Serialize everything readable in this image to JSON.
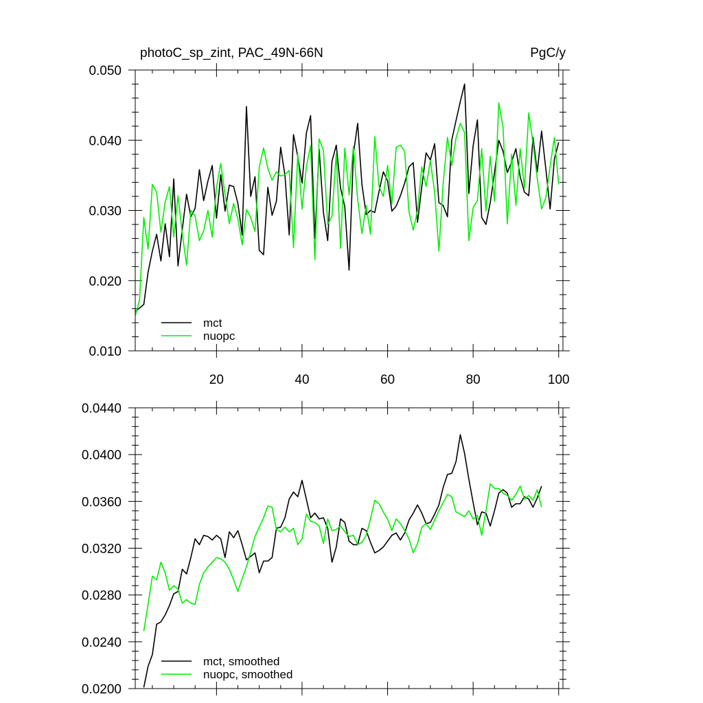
{
  "chart_data": [
    {
      "type": "line",
      "title": "photoC_sp_zint, PAC_49N-66N",
      "units": "PgC/y",
      "xlim": [
        1,
        101
      ],
      "ylim": [
        0.01,
        0.05
      ],
      "x_ticks": [
        20,
        40,
        60,
        80,
        100
      ],
      "y_ticks": [
        "0.010",
        "0.020",
        "0.030",
        "0.040",
        "0.050"
      ],
      "legend": "bottom-left",
      "series": [
        {
          "name": "mct",
          "color": "#000000",
          "x_start": 1,
          "values": [
            0.0156,
            0.0161,
            0.0166,
            0.0212,
            0.0242,
            0.0266,
            0.0228,
            0.0281,
            0.0234,
            0.0345,
            0.0221,
            0.0273,
            0.0323,
            0.0291,
            0.0303,
            0.0358,
            0.0314,
            0.0342,
            0.0364,
            0.0289,
            0.0351,
            0.0299,
            0.0336,
            0.0334,
            0.031,
            0.0265,
            0.0448,
            0.032,
            0.0348,
            0.0243,
            0.0237,
            0.0333,
            0.0293,
            0.0313,
            0.039,
            0.035,
            0.0265,
            0.0408,
            0.0377,
            0.0339,
            0.041,
            0.0435,
            0.026,
            0.0387,
            0.0297,
            0.0257,
            0.037,
            0.0393,
            0.0332,
            0.0305,
            0.0215,
            0.038,
            0.0424,
            0.0337,
            0.0294,
            0.03,
            0.0297,
            0.0327,
            0.0355,
            0.0342,
            0.0299,
            0.0306,
            0.0321,
            0.0339,
            0.0362,
            0.0368,
            0.0283,
            0.0334,
            0.0382,
            0.0372,
            0.0395,
            0.0311,
            0.0307,
            0.0291,
            0.04,
            0.0428,
            0.0455,
            0.048,
            0.0324,
            0.0392,
            0.0429,
            0.029,
            0.028,
            0.0311,
            0.0354,
            0.04,
            0.0384,
            0.0354,
            0.0369,
            0.0388,
            0.0348,
            0.0326,
            0.0321,
            0.0404,
            0.0355,
            0.0413,
            0.0359,
            0.0302,
            0.0373,
            0.0397
          ]
        },
        {
          "name": "nuopc",
          "color": "#00ee00",
          "x_start": 1,
          "values": [
            0.015,
            0.0172,
            0.029,
            0.0245,
            0.0337,
            0.0326,
            0.0269,
            0.0312,
            0.0334,
            0.0262,
            0.0321,
            0.0267,
            0.0222,
            0.03,
            0.0292,
            0.0257,
            0.0271,
            0.03,
            0.0262,
            0.0333,
            0.0367,
            0.0323,
            0.0281,
            0.031,
            0.0288,
            0.0251,
            0.0301,
            0.029,
            0.027,
            0.0362,
            0.0389,
            0.036,
            0.0343,
            0.0355,
            0.0349,
            0.0351,
            0.0357,
            0.0247,
            0.038,
            0.0302,
            0.0362,
            0.0392,
            0.023,
            0.0402,
            0.0385,
            0.028,
            0.0292,
            0.0381,
            0.0246,
            0.0389,
            0.0322,
            0.0391,
            0.0316,
            0.0267,
            0.0307,
            0.0266,
            0.0405,
            0.0334,
            0.032,
            0.0364,
            0.0309,
            0.039,
            0.0393,
            0.0384,
            0.0298,
            0.0272,
            0.03,
            0.0362,
            0.0334,
            0.0371,
            0.0326,
            0.0242,
            0.0339,
            0.0404,
            0.0364,
            0.0403,
            0.0424,
            0.0411,
            0.0257,
            0.0304,
            0.0314,
            0.0388,
            0.0299,
            0.0377,
            0.0313,
            0.0453,
            0.0418,
            0.0281,
            0.038,
            0.0307,
            0.0388,
            0.0332,
            0.0439,
            0.0396,
            0.0345,
            0.0302,
            0.0318,
            0.0363,
            0.0404,
            0.0337
          ]
        }
      ]
    },
    {
      "type": "line",
      "xlim": [
        1,
        101
      ],
      "ylim": [
        0.02,
        0.044
      ],
      "y_ticks": [
        "0.0200",
        "0.0240",
        "0.0280",
        "0.0320",
        "0.0360",
        "0.0400",
        "0.0440"
      ],
      "legend": "bottom-left",
      "series": [
        {
          "name": "mct, smoothed",
          "color": "#000000",
          "x_start": 3,
          "values": [
            0.0201,
            0.0219,
            0.0229,
            0.0255,
            0.0257,
            0.0263,
            0.0271,
            0.0281,
            0.0283,
            0.0302,
            0.0298,
            0.0312,
            0.0328,
            0.0323,
            0.0331,
            0.033,
            0.0327,
            0.0331,
            0.0328,
            0.0312,
            0.0334,
            0.0329,
            0.0335,
            0.0323,
            0.031,
            0.0313,
            0.0316,
            0.0299,
            0.0309,
            0.0309,
            0.0312,
            0.0337,
            0.0338,
            0.0346,
            0.0362,
            0.0368,
            0.0364,
            0.0378,
            0.0362,
            0.0346,
            0.035,
            0.0345,
            0.0346,
            0.0337,
            0.0308,
            0.0321,
            0.0345,
            0.0342,
            0.0326,
            0.0323,
            0.0323,
            0.0337,
            0.0335,
            0.0325,
            0.0316,
            0.0318,
            0.0321,
            0.0326,
            0.0331,
            0.0333,
            0.0327,
            0.0333,
            0.0344,
            0.035,
            0.0357,
            0.035,
            0.0341,
            0.0342,
            0.0349,
            0.0357,
            0.0372,
            0.0383,
            0.0384,
            0.0394,
            0.0417,
            0.0401,
            0.0379,
            0.0359,
            0.034,
            0.0351,
            0.035,
            0.0339,
            0.0352,
            0.0367,
            0.037,
            0.0367,
            0.0355,
            0.0358,
            0.0358,
            0.0364,
            0.0362,
            0.0355,
            0.0363,
            0.0373
          ]
        },
        {
          "name": "nuopc, smoothed",
          "color": "#00ee00",
          "x_start": 3,
          "values": [
            0.0249,
            0.0272,
            0.0296,
            0.0293,
            0.0308,
            0.0299,
            0.0284,
            0.0288,
            0.0285,
            0.0273,
            0.0276,
            0.0273,
            0.0272,
            0.0289,
            0.0299,
            0.0304,
            0.0308,
            0.0312,
            0.0311,
            0.0308,
            0.0302,
            0.0293,
            0.0283,
            0.0294,
            0.0304,
            0.0317,
            0.033,
            0.0338,
            0.0346,
            0.0356,
            0.0355,
            0.0336,
            0.0334,
            0.0338,
            0.0334,
            0.0337,
            0.0323,
            0.0328,
            0.0349,
            0.0343,
            0.0342,
            0.0339,
            0.0324,
            0.0345,
            0.0335,
            0.0336,
            0.0339,
            0.0334,
            0.033,
            0.0331,
            0.0323,
            0.0325,
            0.0331,
            0.0345,
            0.0361,
            0.0358,
            0.0351,
            0.0345,
            0.0335,
            0.0345,
            0.0341,
            0.0335,
            0.0328,
            0.0316,
            0.0324,
            0.0338,
            0.0341,
            0.0336,
            0.0344,
            0.0352,
            0.0359,
            0.0366,
            0.0364,
            0.0351,
            0.0349,
            0.0347,
            0.0352,
            0.0345,
            0.0348,
            0.0331,
            0.0352,
            0.0375,
            0.0371,
            0.0371,
            0.0367,
            0.0365,
            0.0361,
            0.0366,
            0.0373,
            0.0362,
            0.0365,
            0.0361,
            0.037,
            0.0355
          ]
        }
      ]
    }
  ]
}
